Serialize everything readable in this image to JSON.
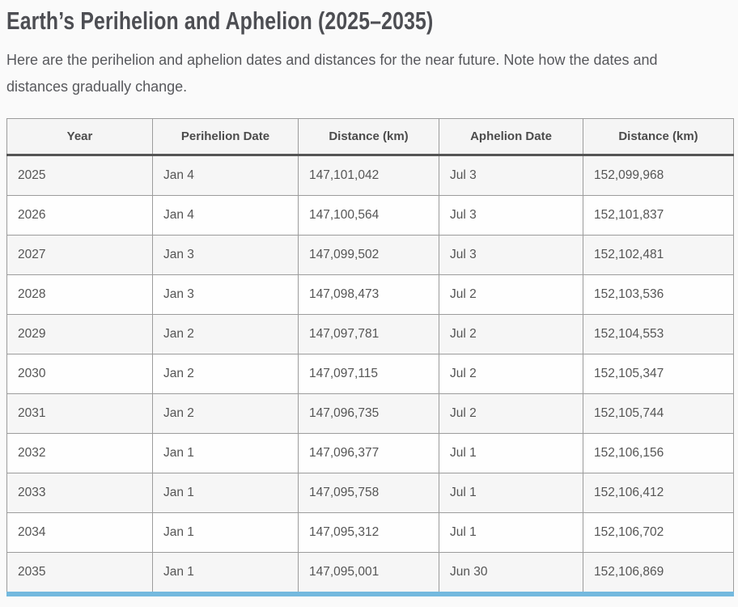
{
  "title": "Earth’s Perihelion and Aphelion (2025–2035)",
  "intro": "Here are the perihelion and aphelion dates and distances for the near future. Note how the dates and distances gradually change.",
  "table": {
    "headers": [
      "Year",
      "Perihelion Date",
      "Distance (km)",
      "Aphelion Date",
      "Distance (km)"
    ],
    "rows": [
      [
        "2025",
        "Jan 4",
        "147,101,042",
        "Jul 3",
        "152,099,968"
      ],
      [
        "2026",
        "Jan 4",
        "147,100,564",
        "Jul 3",
        "152,101,837"
      ],
      [
        "2027",
        "Jan 3",
        "147,099,502",
        "Jul 3",
        "152,102,481"
      ],
      [
        "2028",
        "Jan 3",
        "147,098,473",
        "Jul 2",
        "152,103,536"
      ],
      [
        "2029",
        "Jan 2",
        "147,097,781",
        "Jul 2",
        "152,104,553"
      ],
      [
        "2030",
        "Jan 2",
        "147,097,115",
        "Jul 2",
        "152,105,347"
      ],
      [
        "2031",
        "Jan 2",
        "147,096,735",
        "Jul 2",
        "152,105,744"
      ],
      [
        "2032",
        "Jan 1",
        "147,096,377",
        "Jul 1",
        "152,106,156"
      ],
      [
        "2033",
        "Jan 1",
        "147,095,758",
        "Jul 1",
        "152,106,412"
      ],
      [
        "2034",
        "Jan 1",
        "147,095,312",
        "Jul 1",
        "152,106,702"
      ],
      [
        "2035",
        "Jan 1",
        "147,095,001",
        "Jun 30",
        "152,106,869"
      ]
    ]
  },
  "colors": {
    "accent_bottom_bar": "#74b9de",
    "header_divider": "#555555",
    "grid_border": "#9c9c9c",
    "row_stripe": "#f6f6f6",
    "text": "#555555",
    "title_text": "#4d4e53"
  }
}
